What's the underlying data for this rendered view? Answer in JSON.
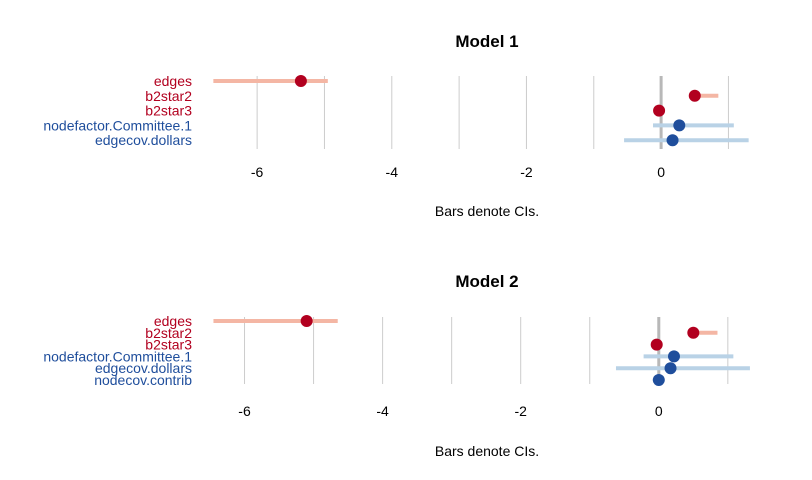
{
  "colors": {
    "negative_point": "#b2001f",
    "negative_ci": "#f4b6a4",
    "positive_point": "#1f4e9c",
    "positive_ci": "#b9d2e6",
    "gridline": "#cccccc",
    "zero_line": "#b8b8b8"
  },
  "chart_data": [
    {
      "type": "dot-and-whisker",
      "title": "Model 1",
      "xlabel": "Bars denote CIs.",
      "xlim": [
        -6.7,
        1.35
      ],
      "xticks": [
        -6,
        -4,
        -2,
        0
      ],
      "grid": true,
      "terms": [
        {
          "name": "edges",
          "estimate": -5.35,
          "ci": [
            -6.65,
            -4.95
          ],
          "sign": "negative"
        },
        {
          "name": "b2star2",
          "estimate": 0.5,
          "ci": [
            0.5,
            0.85
          ],
          "sign": "negative"
        },
        {
          "name": "b2star3",
          "estimate": -0.03,
          "ci": [
            -0.03,
            -0.03
          ],
          "sign": "negative"
        },
        {
          "name": "nodefactor.Committee.1",
          "estimate": 0.27,
          "ci": [
            -0.12,
            1.08
          ],
          "sign": "positive"
        },
        {
          "name": "edgecov.dollars",
          "estimate": 0.17,
          "ci": [
            -0.55,
            1.3
          ],
          "sign": "positive"
        }
      ]
    },
    {
      "type": "dot-and-whisker",
      "title": "Model 2",
      "xlabel": "Bars denote CIs.",
      "xlim": [
        -6.5,
        1.35
      ],
      "xticks": [
        -6,
        -4,
        -2,
        0
      ],
      "grid": true,
      "terms": [
        {
          "name": "edges",
          "estimate": -5.1,
          "ci": [
            -6.45,
            -4.65
          ],
          "sign": "negative"
        },
        {
          "name": "b2star2",
          "estimate": 0.5,
          "ci": [
            0.5,
            0.85
          ],
          "sign": "negative"
        },
        {
          "name": "b2star3",
          "estimate": -0.03,
          "ci": [
            -0.03,
            -0.03
          ],
          "sign": "negative"
        },
        {
          "name": "nodefactor.Committee.1",
          "estimate": 0.22,
          "ci": [
            -0.22,
            1.08
          ],
          "sign": "positive"
        },
        {
          "name": "edgecov.dollars",
          "estimate": 0.17,
          "ci": [
            -0.62,
            1.32
          ],
          "sign": "positive"
        },
        {
          "name": "nodecov.contrib",
          "estimate": 0.0,
          "ci": [
            0.0,
            0.0
          ],
          "sign": "positive"
        }
      ]
    }
  ]
}
